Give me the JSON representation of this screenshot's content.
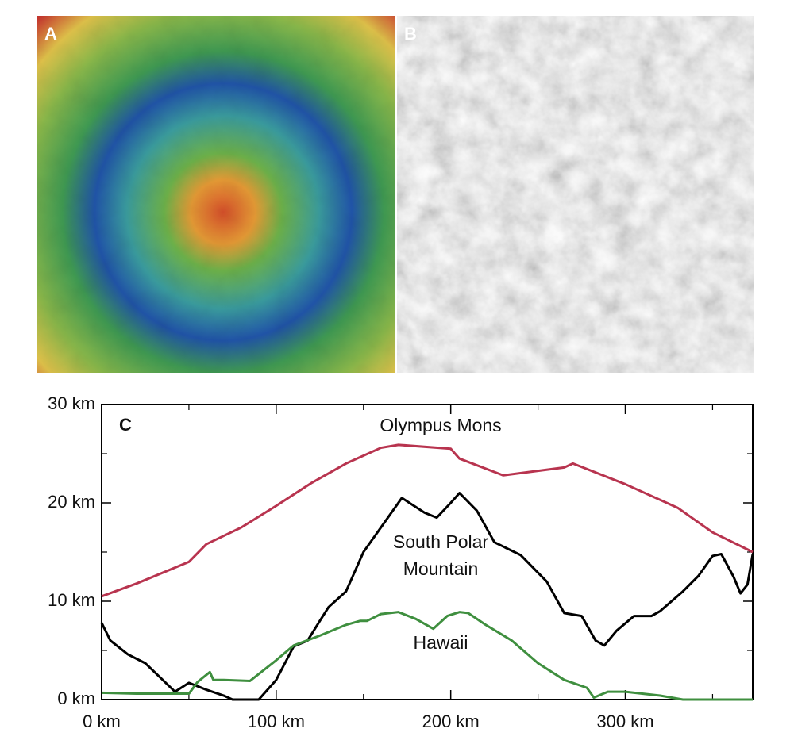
{
  "images": [
    {
      "label": "A"
    },
    {
      "label": "B"
    }
  ],
  "chart_data": {
    "type": "line",
    "label": "C",
    "xlim": [
      0,
      373
    ],
    "ylim": [
      0,
      30
    ],
    "xticks": [
      {
        "value": 0,
        "label": "0 km"
      },
      {
        "value": 100,
        "label": "100 km"
      },
      {
        "value": 200,
        "label": "200 km"
      },
      {
        "value": 300,
        "label": "300 km"
      }
    ],
    "xminorticks": [
      50,
      150,
      250,
      350
    ],
    "yticks": [
      {
        "value": 0,
        "label": "0 km"
      },
      {
        "value": 10,
        "label": "10 km"
      },
      {
        "value": 20,
        "label": "20 km"
      },
      {
        "value": 30,
        "label": "30 km"
      }
    ],
    "yminorticks": [
      5,
      15,
      25
    ],
    "annotations": [
      "Olympus Mons",
      "South Polar",
      "Mountain",
      "Hawaii"
    ],
    "series": [
      {
        "color": "#b8344f",
        "x": [
          0,
          20,
          50,
          60,
          80,
          100,
          120,
          140,
          160,
          170,
          200,
          205,
          230,
          265,
          270,
          300,
          330,
          350,
          373
        ],
        "values": [
          10.5,
          11.8,
          14,
          15.8,
          17.5,
          19.7,
          22,
          24,
          25.6,
          25.9,
          25.5,
          24.5,
          22.8,
          23.6,
          24,
          21.9,
          19.5,
          17,
          15
        ]
      },
      {
        "color": "#000000",
        "x": [
          0,
          5,
          15,
          25,
          35,
          42,
          50,
          60,
          70,
          75,
          90,
          100,
          110,
          118,
          125,
          130,
          140,
          145,
          150,
          160,
          172,
          185,
          192,
          200,
          205,
          215,
          225,
          240,
          255,
          265,
          275,
          283,
          288,
          295,
          305,
          315,
          320,
          333,
          342,
          350,
          355,
          362,
          366,
          370,
          373
        ],
        "values": [
          7.8,
          6,
          4.6,
          3.7,
          2,
          0.8,
          1.7,
          1,
          0.4,
          0,
          0,
          2,
          5.4,
          6,
          8,
          9.4,
          11,
          13,
          15,
          17.5,
          20.5,
          19,
          18.5,
          20,
          21,
          19.2,
          16,
          14.7,
          12,
          8.8,
          8.5,
          6,
          5.5,
          7,
          8.5,
          8.5,
          9,
          11,
          12.6,
          14.6,
          14.8,
          12.5,
          10.8,
          11.7,
          14.8
        ]
      },
      {
        "color": "#3f8f3f",
        "x": [
          0,
          20,
          50,
          55,
          62,
          64,
          70,
          85,
          100,
          110,
          125,
          140,
          148,
          152,
          160,
          170,
          180,
          190,
          198,
          205,
          210,
          220,
          235,
          250,
          265,
          278,
          282,
          290,
          300,
          320,
          333,
          373
        ],
        "values": [
          0.7,
          0.6,
          0.6,
          1.8,
          2.8,
          2,
          2,
          1.9,
          4,
          5.5,
          6.5,
          7.6,
          8,
          8,
          8.7,
          8.9,
          8.2,
          7.2,
          8.5,
          8.9,
          8.8,
          7.6,
          6,
          3.7,
          2,
          1.2,
          0.2,
          0.8,
          0.8,
          0.4,
          0,
          0
        ]
      }
    ]
  }
}
